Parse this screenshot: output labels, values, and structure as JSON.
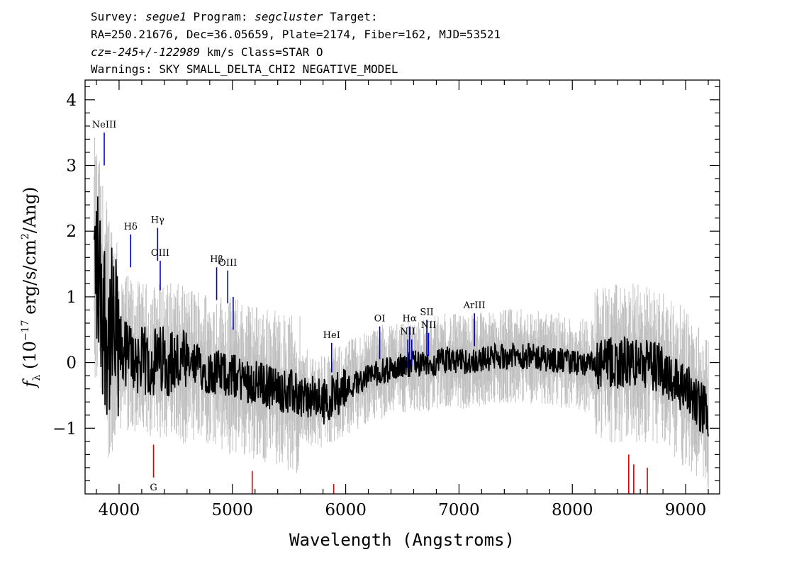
{
  "header": {
    "line1": {
      "survey_label": "Survey: ",
      "survey": "segue1",
      "program_label": " Program: ",
      "program": "segcluster",
      "target_label": " Target:"
    },
    "line2": "RA=250.21676, Dec=36.05659, Plate=2174, Fiber=162, MJD=53521",
    "line3": {
      "cz": "cz=-245+/-122989",
      "rest": " km/s Class=STAR O"
    },
    "line4": "Warnings: SKY SMALL_DELTA_CHI2 NEGATIVE_MODEL"
  },
  "colors": {
    "flux": "#000000",
    "error": "#c0c0c0",
    "emission": "#0000cc",
    "absorption": "#dd0000"
  },
  "chart_data": {
    "type": "line",
    "xlabel": "Wavelength (Angstroms)",
    "ylabel": "f_λ (10^-17 erg/s/cm²/Ang)",
    "xlim": [
      3700,
      9300
    ],
    "ylim": [
      -2.0,
      4.3
    ],
    "xticks": [
      4000,
      5000,
      6000,
      7000,
      8000,
      9000
    ],
    "yticks": [
      -1,
      0,
      1,
      2,
      3,
      4
    ],
    "ytick_labels": [
      "−1",
      "0",
      "1",
      "2",
      "3",
      "4"
    ],
    "series": [
      {
        "role": "flux",
        "x": [
          3800,
          3850,
          3900,
          3950,
          4000,
          4100,
          4200,
          4300,
          4400,
          4500,
          4600,
          4700,
          4800,
          4900,
          5000,
          5100,
          5200,
          5300,
          5400,
          5500,
          5600,
          5700,
          5800,
          5900,
          6000,
          6100,
          6200,
          6300,
          6400,
          6500,
          6600,
          6700,
          6800,
          6900,
          7000,
          7200,
          7400,
          7600,
          7800,
          8000,
          8200,
          8400,
          8600,
          8800,
          9000,
          9100,
          9200
        ],
        "y": [
          1.5,
          0.9,
          0.5,
          0.3,
          0.2,
          0.1,
          0.0,
          0.0,
          0.05,
          0.0,
          -0.05,
          -0.05,
          -0.15,
          -0.15,
          -0.2,
          -0.25,
          -0.3,
          -0.35,
          -0.4,
          -0.45,
          -0.5,
          -0.55,
          -0.6,
          -0.5,
          -0.4,
          -0.3,
          -0.2,
          -0.15,
          -0.1,
          -0.05,
          0.0,
          -0.05,
          0.0,
          0.05,
          0.0,
          0.05,
          0.1,
          0.1,
          0.05,
          0.0,
          -0.05,
          0.0,
          0.0,
          -0.1,
          -0.4,
          -0.6,
          -0.8
        ]
      },
      {
        "role": "error",
        "envelope": 1.1
      }
    ],
    "emission_lines": [
      {
        "label": "NeIII",
        "x": 3869,
        "y1": 3.0,
        "y2": 3.5
      },
      {
        "label": "Hδ",
        "x": 4102,
        "y1": 1.45,
        "y2": 1.95
      },
      {
        "label": "Hγ",
        "x": 4340,
        "y1": 1.55,
        "y2": 2.05
      },
      {
        "label": "OIII",
        "x": 4363,
        "y1": 1.1,
        "y2": 1.55
      },
      {
        "label": "Hβ",
        "x": 4861,
        "y1": 0.95,
        "y2": 1.45
      },
      {
        "label": "OIII",
        "x": 4959,
        "y1": 0.9,
        "y2": 1.4
      },
      {
        "label": "",
        "x": 5007,
        "y1": 0.5,
        "y2": 1.0
      },
      {
        "label": "HeI",
        "x": 5876,
        "y1": -0.15,
        "y2": 0.3
      },
      {
        "label": "OI",
        "x": 6300,
        "y1": 0.05,
        "y2": 0.55
      },
      {
        "label": "NII",
        "x": 6548,
        "y1": -0.1,
        "y2": 0.35
      },
      {
        "label": "Hα",
        "x": 6563,
        "y1": 0.05,
        "y2": 0.55
      },
      {
        "label": "",
        "x": 6583,
        "y1": -0.05,
        "y2": 0.35
      },
      {
        "label": "SII",
        "x": 6716,
        "y1": 0.1,
        "y2": 0.65
      },
      {
        "label": "NII",
        "x": 6731,
        "y1": 0.1,
        "y2": 0.45
      },
      {
        "label": "ArIII",
        "x": 7136,
        "y1": 0.25,
        "y2": 0.75
      }
    ],
    "absorption_lines": [
      {
        "label": "G",
        "x": 4304,
        "y1": -1.75,
        "y2": -1.25
      },
      {
        "label": "",
        "x": 5175,
        "y1": -2.0,
        "y2": -1.65
      },
      {
        "label": "",
        "x": 5894,
        "y1": -2.0,
        "y2": -1.85
      },
      {
        "label": "",
        "x": 8498,
        "y1": -2.0,
        "y2": -1.4
      },
      {
        "label": "",
        "x": 8542,
        "y1": -2.0,
        "y2": -1.55
      },
      {
        "label": "",
        "x": 8662,
        "y1": -2.0,
        "y2": -1.6
      }
    ]
  }
}
